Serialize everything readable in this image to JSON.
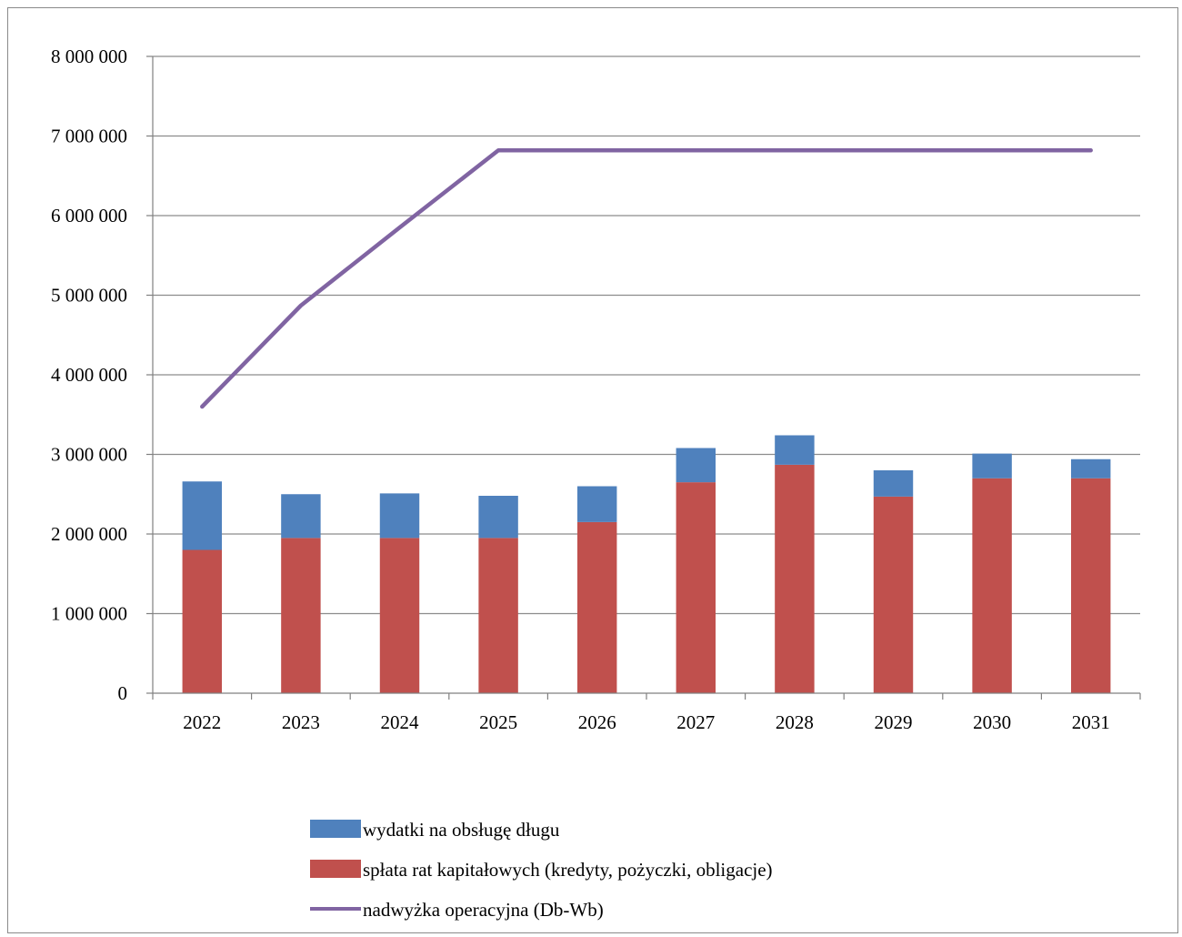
{
  "chart_data": {
    "type": "bar",
    "stacked": true,
    "categories": [
      "2022",
      "2023",
      "2024",
      "2025",
      "2026",
      "2027",
      "2028",
      "2029",
      "2030",
      "2031"
    ],
    "series": [
      {
        "name": "spłata rat kapitałowych (kredyty, pożyczki, obligacje)",
        "type": "bar",
        "color": "#c0504d",
        "values": [
          1800000,
          1950000,
          1950000,
          1950000,
          2150000,
          2650000,
          2870000,
          2470000,
          2700000,
          2700000
        ]
      },
      {
        "name": "wydatki na obsługę długu",
        "type": "bar",
        "color": "#4f81bd",
        "values": [
          860000,
          550000,
          560000,
          530000,
          450000,
          430000,
          370000,
          330000,
          310000,
          240000
        ]
      },
      {
        "name": "nadwyżka operacyjna (Db-Wb)",
        "type": "line",
        "color": "#8064a2",
        "values": [
          3600000,
          4870000,
          5850000,
          6820000,
          6820000,
          6820000,
          6820000,
          6820000,
          6820000,
          6820000
        ]
      }
    ],
    "ylim": [
      0,
      8000000
    ],
    "yticks": [
      "0",
      "1 000 000",
      "2 000 000",
      "3 000 000",
      "4 000 000",
      "5 000 000",
      "6 000 000",
      "7 000 000",
      "8 000 000"
    ],
    "grid": true,
    "legend_position": "bottom",
    "legend": [
      {
        "label": "wydatki na obsługę długu",
        "color": "#4f81bd",
        "marker": "box"
      },
      {
        "label": "spłata rat kapitałowych (kredyty, pożyczki, obligacje)",
        "color": "#c0504d",
        "marker": "box"
      },
      {
        "label": "nadwyżka operacyjna (Db-Wb)",
        "color": "#8064a2",
        "marker": "line"
      }
    ]
  }
}
